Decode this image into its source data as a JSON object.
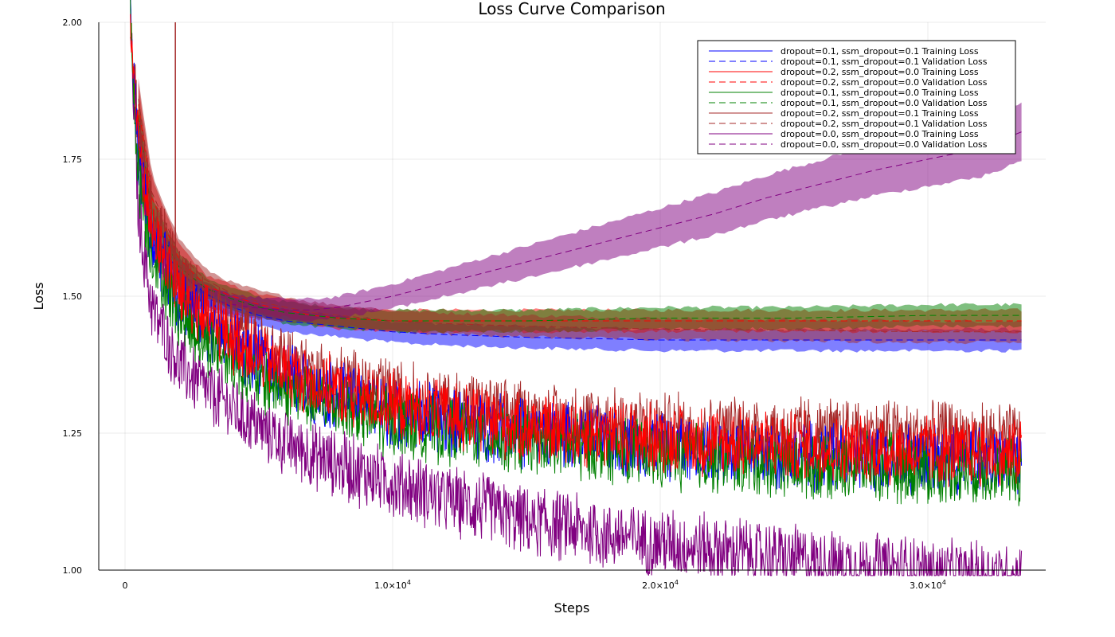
{
  "chart_data": {
    "type": "line",
    "title": "Loss Curve Comparison",
    "xlabel": "Steps",
    "ylabel": "Loss",
    "xlim": [
      -1000,
      34500
    ],
    "ylim": [
      1.0,
      2.0
    ],
    "x_ticks": [
      {
        "value": 0,
        "label": "0"
      },
      {
        "value": 10000,
        "label": "1.0×10"
      },
      {
        "value": 20000,
        "label": "2.0×10"
      },
      {
        "value": 30000,
        "label": "3.0×10"
      }
    ],
    "x_tick_exponent": "4",
    "y_ticks": [
      {
        "value": 1.0,
        "label": "1.00"
      },
      {
        "value": 1.25,
        "label": "1.25"
      },
      {
        "value": 1.5,
        "label": "1.50"
      },
      {
        "value": 1.75,
        "label": "1.75"
      },
      {
        "value": 2.0,
        "label": "2.00"
      }
    ],
    "grid": true,
    "legend_position": "top-right",
    "series": [
      {
        "name": "dropout=0.1, ssm_dropout=0.1 Training Loss",
        "kind": "training",
        "color": "#0000ff",
        "x": [
          200,
          500,
          1000,
          2000,
          3000,
          5000,
          7000,
          10000,
          15000,
          20000,
          25000,
          30000,
          33500
        ],
        "values": [
          2.0,
          1.75,
          1.6,
          1.5,
          1.45,
          1.38,
          1.33,
          1.29,
          1.25,
          1.225,
          1.21,
          1.2,
          1.195
        ]
      },
      {
        "name": "dropout=0.1, ssm_dropout=0.1 Validation Loss",
        "kind": "validation",
        "color": "#0000ff",
        "x": [
          500,
          1000,
          2000,
          3000,
          4000,
          5000,
          6000,
          7000,
          8000,
          10000,
          12000,
          15000,
          20000,
          25000,
          30000,
          33500
        ],
        "values": [
          1.8,
          1.62,
          1.545,
          1.505,
          1.48,
          1.465,
          1.455,
          1.45,
          1.445,
          1.435,
          1.43,
          1.425,
          1.42,
          1.42,
          1.42,
          1.42
        ]
      },
      {
        "name": "dropout=0.2, ssm_dropout=0.0 Training Loss",
        "kind": "training",
        "color": "#ff0000",
        "x": [
          200,
          500,
          1000,
          2000,
          3000,
          5000,
          7000,
          10000,
          15000,
          20000,
          25000,
          30000,
          33500
        ],
        "values": [
          2.0,
          1.78,
          1.62,
          1.51,
          1.46,
          1.39,
          1.34,
          1.3,
          1.26,
          1.24,
          1.225,
          1.215,
          1.21
        ]
      },
      {
        "name": "dropout=0.2, ssm_dropout=0.0 Validation Loss",
        "kind": "validation",
        "color": "#ff0000",
        "x": [
          500,
          1000,
          2000,
          3000,
          4000,
          5000,
          6000,
          7000,
          8000,
          10000,
          12000,
          15000,
          20000,
          25000,
          30000,
          33500
        ],
        "values": [
          1.85,
          1.68,
          1.57,
          1.52,
          1.5,
          1.485,
          1.475,
          1.465,
          1.46,
          1.455,
          1.455,
          1.455,
          1.455,
          1.455,
          1.455,
          1.455
        ]
      },
      {
        "name": "dropout=0.1, ssm_dropout=0.0 Training Loss",
        "kind": "training",
        "color": "#008000",
        "x": [
          200,
          500,
          1000,
          2000,
          3000,
          5000,
          7000,
          10000,
          15000,
          20000,
          25000,
          30000,
          33500
        ],
        "values": [
          2.0,
          1.72,
          1.58,
          1.47,
          1.42,
          1.35,
          1.31,
          1.27,
          1.235,
          1.21,
          1.195,
          1.185,
          1.18
        ]
      },
      {
        "name": "dropout=0.1, ssm_dropout=0.0 Validation Loss",
        "kind": "validation",
        "color": "#008000",
        "x": [
          500,
          1000,
          2000,
          3000,
          4000,
          5000,
          6000,
          7000,
          8000,
          10000,
          12000,
          15000,
          20000,
          25000,
          30000,
          33500
        ],
        "values": [
          1.83,
          1.65,
          1.555,
          1.515,
          1.495,
          1.48,
          1.47,
          1.465,
          1.46,
          1.455,
          1.455,
          1.455,
          1.46,
          1.46,
          1.465,
          1.465
        ]
      },
      {
        "name": "dropout=0.2, ssm_dropout=0.1 Training Loss",
        "kind": "training",
        "color": "#a52a2a",
        "x": [
          200,
          500,
          1000,
          2000,
          3000,
          5000,
          7000,
          10000,
          15000,
          20000,
          25000,
          30000,
          33500
        ],
        "values": [
          2.0,
          1.8,
          1.65,
          1.54,
          1.48,
          1.41,
          1.36,
          1.32,
          1.28,
          1.26,
          1.25,
          1.245,
          1.24
        ]
      },
      {
        "name": "dropout=0.2, ssm_dropout=0.1 Validation Loss",
        "kind": "validation",
        "color": "#a52a2a",
        "x": [
          500,
          1000,
          2000,
          3000,
          4000,
          5000,
          6000,
          7000,
          8000,
          10000,
          12000,
          15000,
          20000,
          25000,
          30000,
          33500
        ],
        "values": [
          1.86,
          1.69,
          1.58,
          1.53,
          1.505,
          1.49,
          1.48,
          1.47,
          1.465,
          1.455,
          1.45,
          1.445,
          1.44,
          1.438,
          1.435,
          1.435
        ]
      },
      {
        "name": "dropout=0.0, ssm_dropout=0.0 Training Loss",
        "kind": "training",
        "color": "#800080",
        "x": [
          200,
          500,
          1000,
          2000,
          3000,
          5000,
          7000,
          10000,
          15000,
          20000,
          25000,
          30000,
          33500
        ],
        "values": [
          2.0,
          1.65,
          1.48,
          1.38,
          1.33,
          1.26,
          1.21,
          1.16,
          1.09,
          1.05,
          1.02,
          0.995,
          0.985
        ]
      },
      {
        "name": "dropout=0.0, ssm_dropout=0.0 Validation Loss",
        "kind": "validation",
        "color": "#800080",
        "x": [
          500,
          1000,
          2000,
          3000,
          4000,
          5000,
          6000,
          7000,
          8000,
          9000,
          10000,
          12000,
          14000,
          16000,
          18000,
          20000,
          22000,
          24000,
          26000,
          28000,
          30000,
          32000,
          33500
        ],
        "values": [
          1.78,
          1.6,
          1.52,
          1.495,
          1.485,
          1.478,
          1.475,
          1.475,
          1.48,
          1.49,
          1.5,
          1.525,
          1.55,
          1.575,
          1.6,
          1.625,
          1.65,
          1.68,
          1.705,
          1.73,
          1.75,
          1.77,
          1.8
        ]
      }
    ]
  }
}
